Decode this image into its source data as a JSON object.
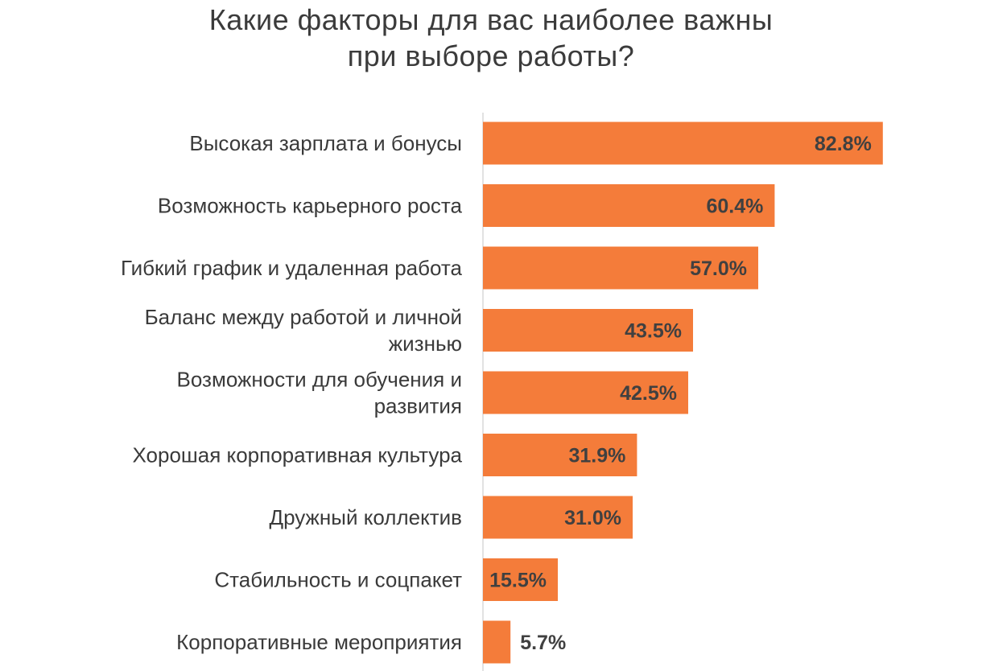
{
  "colors": {
    "bar": "#f47c3a",
    "axis": "#d9d9d9",
    "text": "#3a3a3a"
  },
  "chart_data": {
    "type": "bar",
    "orientation": "horizontal",
    "title": [
      "Какие факторы для вас наиболее важны",
      "при выборе работы?"
    ],
    "categories": [
      [
        "Высокая зарплата и бонусы"
      ],
      [
        "Возможность карьерного роста"
      ],
      [
        "Гибкий график и удаленная работа"
      ],
      [
        "Баланс между работой и личной",
        "жизнью"
      ],
      [
        "Возможности для обучения и",
        "развития"
      ],
      [
        "Хорошая корпоративная культура"
      ],
      [
        "Дружный коллектив"
      ],
      [
        "Стабильность и соцпакет"
      ],
      [
        "Корпоративные мероприятия"
      ]
    ],
    "values": [
      82.8,
      60.4,
      57.0,
      43.5,
      42.5,
      31.9,
      31.0,
      15.5,
      5.7
    ],
    "value_labels": [
      "82.8%",
      "60.4%",
      "57.0%",
      "43.5%",
      "42.5%",
      "31.9%",
      "31.0%",
      "15.5%",
      "5.7%"
    ],
    "xlim": [
      0,
      100
    ],
    "grid": false,
    "legend": "none"
  }
}
